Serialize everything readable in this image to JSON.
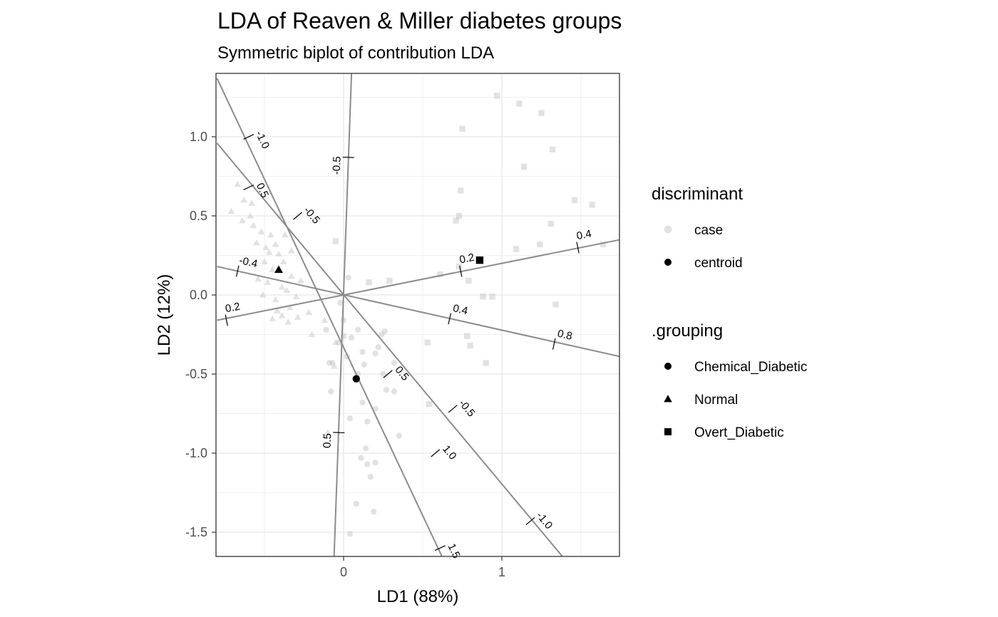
{
  "chart_data": {
    "type": "scatter",
    "title": "LDA of Reaven & Miller diabetes groups",
    "subtitle": "Symmetric biplot of contribution LDA",
    "xlabel": "LD1 (88%)",
    "ylabel": "LD2 (12%)",
    "xlim": [
      -0.8,
      1.75
    ],
    "ylim": [
      -1.65,
      1.4
    ],
    "x_ticks": [
      0,
      1
    ],
    "x_tick_labels": [
      "0",
      "1"
    ],
    "y_ticks": [
      1.0,
      0.5,
      0.0,
      -0.5,
      -1.0,
      -1.5
    ],
    "y_tick_labels": [
      "1.0",
      "0.5",
      "0.0",
      "-0.5",
      "-1.0",
      "-1.5"
    ],
    "grid": true,
    "legend_placement": "right",
    "colors": {
      "case": "#d9d9d9",
      "centroid": "#000000",
      "axis_line": "#8c8c8c",
      "grid": "#ebebeb"
    },
    "legends": [
      {
        "title": "discriminant",
        "entries": [
          {
            "label": "case",
            "shape": "circle",
            "color": "#d9d9d9"
          },
          {
            "label": "centroid",
            "shape": "circle",
            "color": "#000000"
          }
        ]
      },
      {
        "title": ".grouping",
        "entries": [
          {
            "label": "Chemical_Diabetic",
            "shape": "circle",
            "color": "#000000"
          },
          {
            "label": "Normal",
            "shape": "triangle",
            "color": "#000000"
          },
          {
            "label": "Overt_Diabetic",
            "shape": "square",
            "color": "#000000"
          }
        ]
      }
    ],
    "centroids": [
      {
        "group": "Chemical_Diabetic",
        "shape": "circle",
        "x": 0.08,
        "y": -0.53
      },
      {
        "group": "Normal",
        "shape": "triangle",
        "x": -0.41,
        "y": 0.16
      },
      {
        "group": "Overt_Diabetic",
        "shape": "square",
        "x": 0.86,
        "y": 0.22
      }
    ],
    "cases": {
      "Normal": [
        [
          -0.67,
          0.7
        ],
        [
          -0.63,
          0.6
        ],
        [
          -0.71,
          0.53
        ],
        [
          -0.64,
          0.47
        ],
        [
          -0.59,
          0.5
        ],
        [
          -0.52,
          0.4
        ],
        [
          -0.46,
          0.38
        ],
        [
          -0.55,
          0.33
        ],
        [
          -0.49,
          0.3
        ],
        [
          -0.43,
          0.32
        ],
        [
          -0.41,
          0.26
        ],
        [
          -0.5,
          0.21
        ],
        [
          -0.38,
          0.21
        ],
        [
          -0.45,
          0.16
        ],
        [
          -0.33,
          0.12
        ],
        [
          -0.48,
          0.08
        ],
        [
          -0.39,
          0.05
        ],
        [
          -0.36,
          0.03
        ],
        [
          -0.3,
          -0.01
        ],
        [
          -0.43,
          -0.03
        ],
        [
          -0.34,
          -0.08
        ],
        [
          -0.39,
          -0.13
        ],
        [
          -0.45,
          -0.15
        ],
        [
          -0.35,
          -0.17
        ],
        [
          -0.29,
          -0.14
        ],
        [
          -0.12,
          -0.16
        ],
        [
          -0.2,
          -0.25
        ],
        [
          -0.05,
          -0.3
        ],
        [
          -0.06,
          -0.45
        ],
        [
          -0.1,
          -0.87
        ],
        [
          -0.58,
          0.58
        ],
        [
          -0.4,
          0.5
        ],
        [
          -0.57,
          0.44
        ],
        [
          -0.27,
          0.09
        ],
        [
          -0.54,
          0.1
        ],
        [
          -0.51,
          0.0
        ],
        [
          -0.42,
          -0.1
        ],
        [
          -0.22,
          -0.11
        ],
        [
          -0.37,
          0.38
        ],
        [
          -0.47,
          0.27
        ],
        [
          -0.33,
          0.28
        ]
      ],
      "Chemical_Diabetic": [
        [
          0.03,
          0.11
        ],
        [
          0.0,
          -0.16
        ],
        [
          0.02,
          -0.39
        ],
        [
          -0.09,
          -0.43
        ],
        [
          0.12,
          -0.36
        ],
        [
          0.26,
          -0.23
        ],
        [
          0.2,
          -0.37
        ],
        [
          0.25,
          -0.5
        ],
        [
          0.32,
          -0.43
        ],
        [
          0.32,
          -0.61
        ],
        [
          0.27,
          -0.6
        ],
        [
          0.12,
          -0.68
        ],
        [
          0.2,
          -0.72
        ],
        [
          0.04,
          -0.78
        ],
        [
          0.35,
          -0.89
        ],
        [
          0.14,
          -0.97
        ],
        [
          0.15,
          -1.07
        ],
        [
          0.11,
          -1.03
        ],
        [
          0.2,
          -1.06
        ],
        [
          0.17,
          -1.15
        ],
        [
          0.08,
          -1.32
        ],
        [
          0.19,
          -1.37
        ],
        [
          0.04,
          -1.51
        ],
        [
          -0.08,
          -0.61
        ],
        [
          -0.07,
          -0.43
        ],
        [
          -0.03,
          -0.3
        ],
        [
          -0.11,
          -0.22
        ],
        [
          0.09,
          -0.5
        ],
        [
          0.05,
          -0.27
        ],
        [
          0.24,
          -0.25
        ],
        [
          0.13,
          -0.44
        ],
        [
          -0.02,
          -0.05
        ],
        [
          0.0,
          -0.26
        ],
        [
          0.15,
          -0.8
        ],
        [
          0.22,
          -0.33
        ],
        [
          0.09,
          -0.22
        ]
      ],
      "Overt_Diabetic": [
        [
          0.97,
          1.26
        ],
        [
          1.11,
          1.21
        ],
        [
          1.25,
          1.15
        ],
        [
          0.75,
          1.05
        ],
        [
          1.32,
          0.92
        ],
        [
          1.14,
          0.81
        ],
        [
          0.74,
          0.66
        ],
        [
          0.73,
          0.5
        ],
        [
          0.71,
          0.47
        ],
        [
          1.46,
          0.6
        ],
        [
          1.57,
          0.57
        ],
        [
          1.31,
          0.45
        ],
        [
          1.64,
          0.32
        ],
        [
          1.24,
          0.32
        ],
        [
          1.09,
          0.29
        ],
        [
          0.61,
          0.13
        ],
        [
          0.73,
          0.18
        ],
        [
          0.79,
          0.09
        ],
        [
          0.29,
          0.09
        ],
        [
          0.16,
          0.08
        ],
        [
          -0.05,
          0.34
        ],
        [
          0.88,
          -0.01
        ],
        [
          0.94,
          -0.01
        ],
        [
          1.34,
          -0.06
        ],
        [
          0.78,
          -0.26
        ],
        [
          0.8,
          -0.32
        ],
        [
          0.53,
          -0.3
        ],
        [
          0.9,
          -0.43
        ],
        [
          0.54,
          -0.69
        ]
      ]
    },
    "variable_axes": [
      {
        "ends": [
          [
            -0.8,
            1.37
          ],
          [
            0.62,
            -1.65
          ]
        ],
        "ticks": [
          {
            "at": [
              -0.6,
              1.0
            ],
            "label": "-1.0"
          },
          {
            "at": [
              -0.6,
              0.68
            ],
            "label": "0.5"
          },
          {
            "at": [
              0.61,
              -1.6
            ],
            "label": "1.5"
          }
        ]
      },
      {
        "ends": [
          [
            -0.8,
            0.96
          ],
          [
            1.38,
            -1.65
          ]
        ],
        "ticks": [
          {
            "at": [
              -0.29,
              0.5
            ],
            "label": "-0.5"
          },
          {
            "at": [
              0.28,
              -0.5
            ],
            "label": "0.5"
          },
          {
            "at": [
              0.69,
              -0.72
            ],
            "label": "-0.5"
          },
          {
            "at": [
              0.58,
              -1.0
            ],
            "label": "1.0"
          },
          {
            "at": [
              1.18,
              -1.43
            ],
            "label": "-1.0"
          }
        ]
      },
      {
        "ends": [
          [
            0.05,
            1.4
          ],
          [
            -0.06,
            -1.65
          ]
        ],
        "ticks": [
          {
            "at": [
              0.03,
              0.87
            ],
            "label": "-0.5"
          },
          {
            "at": [
              -0.03,
              -0.87
            ],
            "label": "0.5"
          }
        ]
      },
      {
        "ends": [
          [
            -0.8,
            -0.16
          ],
          [
            1.75,
            0.35
          ]
        ],
        "ticks": [
          {
            "at": [
              -0.74,
              -0.16
            ],
            "label": "0.2"
          },
          {
            "at": [
              0.74,
              0.15
            ],
            "label": "0.2"
          },
          {
            "at": [
              1.48,
              0.3
            ],
            "label": "0.4"
          }
        ]
      },
      {
        "ends": [
          [
            -0.8,
            0.18
          ],
          [
            1.75,
            -0.39
          ]
        ],
        "ticks": [
          {
            "at": [
              -0.67,
              0.15
            ],
            "label": "-0.4"
          },
          {
            "at": [
              0.67,
              -0.15
            ],
            "label": "0.4"
          },
          {
            "at": [
              1.33,
              -0.31
            ],
            "label": "0.8"
          }
        ]
      }
    ]
  }
}
